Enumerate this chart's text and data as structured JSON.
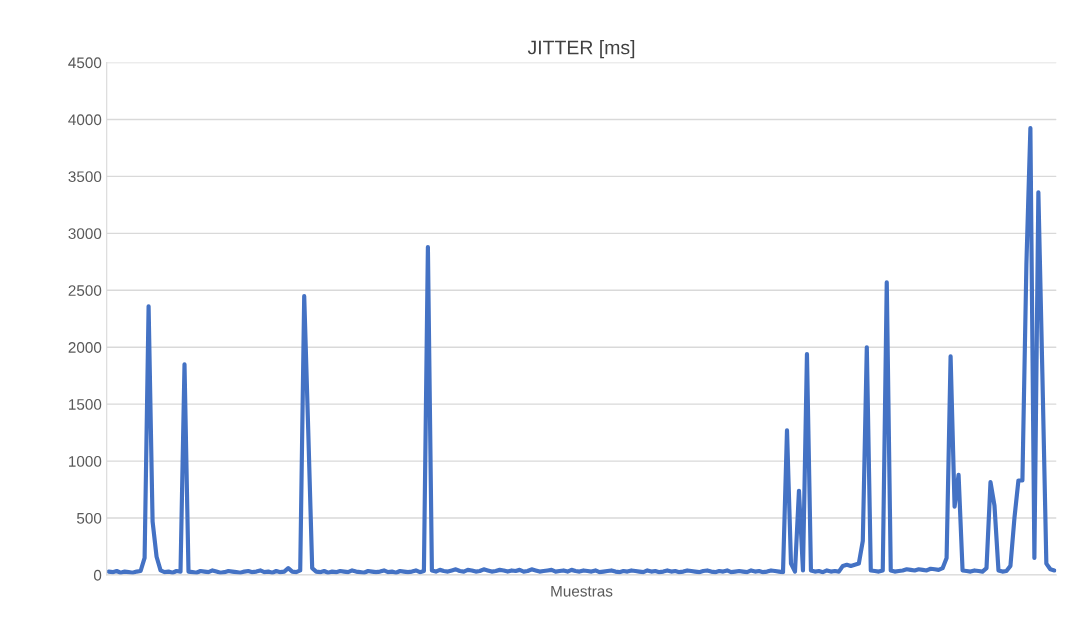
{
  "chart_data": {
    "type": "line",
    "title": "JITTER [ms]",
    "xlabel": "Muestras",
    "categories": [
      null,
      null,
      null,
      null,
      null,
      null,
      null,
      null,
      null,
      null,
      null,
      null,
      null,
      null,
      null,
      null,
      null,
      null,
      null,
      null,
      null,
      null,
      null,
      null,
      null,
      null,
      null,
      null,
      null,
      null,
      null,
      null,
      null,
      null,
      null,
      null,
      null,
      null,
      null,
      null,
      null,
      null,
      null,
      null,
      null,
      null,
      null,
      null,
      null,
      null,
      null,
      null,
      null,
      null,
      null,
      null,
      null,
      null,
      null,
      null,
      null,
      null,
      null,
      null,
      null,
      null,
      null,
      null,
      null,
      null,
      null,
      null,
      null,
      null,
      null,
      null,
      null,
      null,
      null,
      null,
      null,
      null,
      null,
      null,
      null,
      null,
      null,
      null,
      null,
      null,
      null,
      null,
      null,
      null,
      null,
      null,
      null,
      null,
      null,
      null,
      null,
      null,
      null,
      null,
      null,
      null,
      null,
      null,
      null,
      null,
      null,
      null,
      null,
      null,
      null,
      null,
      null,
      null,
      null,
      null,
      null,
      null,
      null,
      null,
      null,
      null,
      null,
      null,
      null,
      null,
      null,
      null,
      null,
      null,
      null,
      null,
      null,
      null,
      null,
      null,
      null,
      null,
      null,
      null,
      null,
      null,
      null,
      null,
      null,
      null,
      null,
      null,
      null,
      null,
      null,
      null,
      null,
      null,
      null,
      null,
      null,
      null,
      null,
      null,
      null,
      null,
      null,
      null,
      null,
      null,
      null,
      null,
      null,
      null,
      null,
      null,
      null,
      null,
      null,
      null,
      null,
      null,
      null,
      null,
      null,
      null,
      null,
      null,
      null,
      null,
      null,
      null,
      null,
      null,
      null,
      null,
      null,
      null,
      null,
      null,
      null,
      null,
      null,
      null,
      null,
      null,
      null,
      null,
      null,
      null,
      null,
      null,
      null,
      null,
      null,
      null,
      null,
      null,
      null,
      null,
      null,
      null,
      null,
      null,
      null,
      null,
      null,
      null,
      null,
      null,
      null,
      null,
      null,
      null,
      null,
      null,
      null,
      null
    ],
    "series": [
      {
        "color": "#4472c4",
        "values": [
          30,
          25,
          35,
          20,
          30,
          25,
          20,
          30,
          35,
          150,
          2360,
          470,
          160,
          40,
          25,
          30,
          20,
          35,
          30,
          1850,
          30,
          25,
          20,
          35,
          30,
          25,
          40,
          30,
          20,
          25,
          35,
          30,
          25,
          20,
          30,
          35,
          25,
          30,
          40,
          25,
          30,
          20,
          35,
          25,
          30,
          60,
          30,
          25,
          40,
          2450,
          1280,
          60,
          30,
          25,
          35,
          20,
          30,
          25,
          35,
          30,
          25,
          40,
          30,
          25,
          20,
          35,
          30,
          25,
          30,
          40,
          25,
          30,
          20,
          35,
          30,
          25,
          30,
          40,
          25,
          35,
          2880,
          40,
          30,
          45,
          35,
          30,
          40,
          50,
          35,
          30,
          45,
          40,
          30,
          35,
          50,
          40,
          30,
          35,
          45,
          40,
          30,
          40,
          35,
          45,
          30,
          35,
          50,
          40,
          30,
          35,
          40,
          45,
          30,
          35,
          40,
          30,
          45,
          35,
          30,
          40,
          35,
          30,
          40,
          25,
          30,
          35,
          40,
          30,
          25,
          35,
          30,
          40,
          35,
          30,
          25,
          40,
          30,
          35,
          25,
          30,
          40,
          30,
          35,
          25,
          30,
          40,
          35,
          30,
          25,
          35,
          40,
          30,
          25,
          35,
          30,
          40,
          25,
          30,
          35,
          30,
          25,
          40,
          30,
          35,
          25,
          30,
          40,
          35,
          30,
          25,
          1270,
          100,
          30,
          740,
          40,
          1940,
          40,
          30,
          35,
          25,
          40,
          30,
          35,
          30,
          80,
          90,
          80,
          90,
          100,
          300,
          2000,
          40,
          35,
          30,
          40,
          2570,
          40,
          30,
          35,
          40,
          50,
          45,
          40,
          50,
          45,
          40,
          55,
          50,
          45,
          60,
          150,
          1920,
          600,
          880,
          40,
          35,
          30,
          40,
          35,
          30,
          60,
          815,
          609,
          40,
          30,
          35,
          80,
          500,
          830,
          830,
          2730,
          3925,
          150,
          3360,
          1770,
          100,
          50,
          40
        ]
      }
    ],
    "ylim": [
      0,
      4500
    ],
    "yticks": [
      0,
      500,
      1000,
      1500,
      2000,
      2500,
      3000,
      3500,
      4000,
      4500
    ],
    "grid": "y",
    "legend": false
  }
}
